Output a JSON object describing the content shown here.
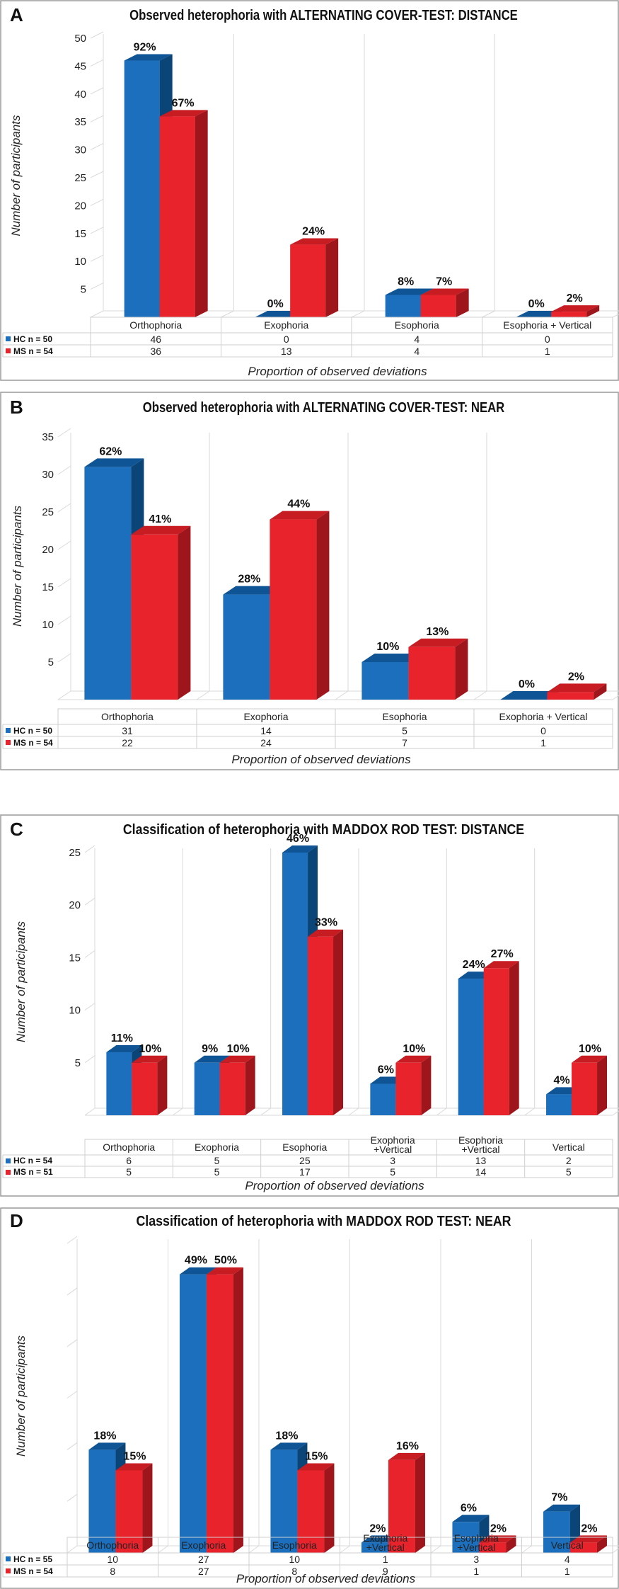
{
  "colors": {
    "hc": "#1b6fbd",
    "hc_top": "#0f5596",
    "hc_side": "#0b4476",
    "ms": "#e8232b",
    "ms_top": "#c81c23",
    "ms_side": "#9e151b"
  },
  "chart_data": [
    {
      "type": "bar",
      "letter": "A",
      "title": "Observed heterophoria with ALTERNATING COVER-TEST: DISTANCE",
      "ylabel": "Number of participants",
      "xlabel": "Proportion of observed deviations",
      "ylim": [
        0,
        50
      ],
      "yticks": [
        5,
        10,
        15,
        20,
        25,
        30,
        35,
        40,
        45,
        50
      ],
      "categories": [
        "Orthophoria",
        "Exophoria",
        "Esophoria",
        "Esophoria + Vertical"
      ],
      "series": [
        {
          "name": "HC n = 50",
          "values": [
            46,
            0,
            4,
            0
          ],
          "pct": [
            "92%",
            "0%",
            "8%",
            "0%"
          ]
        },
        {
          "name": "MS n = 54",
          "values": [
            36,
            13,
            4,
            1
          ],
          "pct": [
            "67%",
            "24%",
            "7%",
            "2%"
          ]
        }
      ]
    },
    {
      "type": "bar",
      "letter": "B",
      "title": "Observed heterophoria with ALTERNATING COVER-TEST: NEAR",
      "ylabel": "Number of participants",
      "xlabel": "Proportion of observed deviations",
      "ylim": [
        0,
        35
      ],
      "yticks": [
        5,
        10,
        15,
        20,
        25,
        30,
        35
      ],
      "categories": [
        "Orthophoria",
        "Exophoria",
        "Esophoria",
        "Exophoria + Vertical"
      ],
      "series": [
        {
          "name": "HC n = 50",
          "values": [
            31,
            14,
            5,
            0
          ],
          "pct": [
            "62%",
            "28%",
            "10%",
            "0%"
          ]
        },
        {
          "name": "MS n = 54",
          "values": [
            22,
            24,
            7,
            1
          ],
          "pct": [
            "41%",
            "44%",
            "13%",
            "2%"
          ]
        }
      ]
    },
    {
      "type": "bar",
      "letter": "C",
      "title": "Classification of heterophoria with MADDOX ROD TEST: DISTANCE",
      "ylabel": "Number of participants",
      "xlabel": "Proportion of observed deviations",
      "ylim": [
        0,
        25
      ],
      "yticks": [
        5,
        10,
        15,
        20,
        25
      ],
      "categories": [
        "Orthophoria",
        "Exophoria",
        "Esophoria",
        "Exophoria\n+Vertical",
        "Esophoria\n+Vertical",
        "Vertical"
      ],
      "series": [
        {
          "name": "HC n = 54",
          "values": [
            6,
            5,
            25,
            3,
            13,
            2
          ],
          "pct": [
            "11%",
            "9%",
            "46%",
            "6%",
            "24%",
            "4%"
          ]
        },
        {
          "name": "MS n = 51",
          "values": [
            5,
            5,
            17,
            5,
            14,
            5
          ],
          "pct": [
            "10%",
            "10%",
            "33%",
            "10%",
            "27%",
            "10%"
          ]
        }
      ]
    },
    {
      "type": "bar",
      "letter": "D",
      "title": "Classification of heterophoria with MADDOX ROD TEST: NEAR",
      "ylabel": "Number of participants",
      "xlabel": "Proportion of observed deviations",
      "ylim": [
        0,
        30
      ],
      "yticks": [],
      "categories": [
        "Orthophoria",
        "Exophoria",
        "Esophoria",
        "Exophoria\n+Vertical",
        "Esophoria\n+Vertical",
        "Vertical"
      ],
      "series": [
        {
          "name": "HC n = 55",
          "values": [
            10,
            27,
            10,
            1,
            3,
            4
          ],
          "pct": [
            "18%",
            "49%",
            "18%",
            "2%",
            "6%",
            "7%"
          ]
        },
        {
          "name": "MS n = 54",
          "values": [
            8,
            27,
            8,
            9,
            1,
            1
          ],
          "pct": [
            "15%",
            "50%",
            "15%",
            "16%",
            "2%",
            "2%"
          ]
        }
      ]
    }
  ]
}
